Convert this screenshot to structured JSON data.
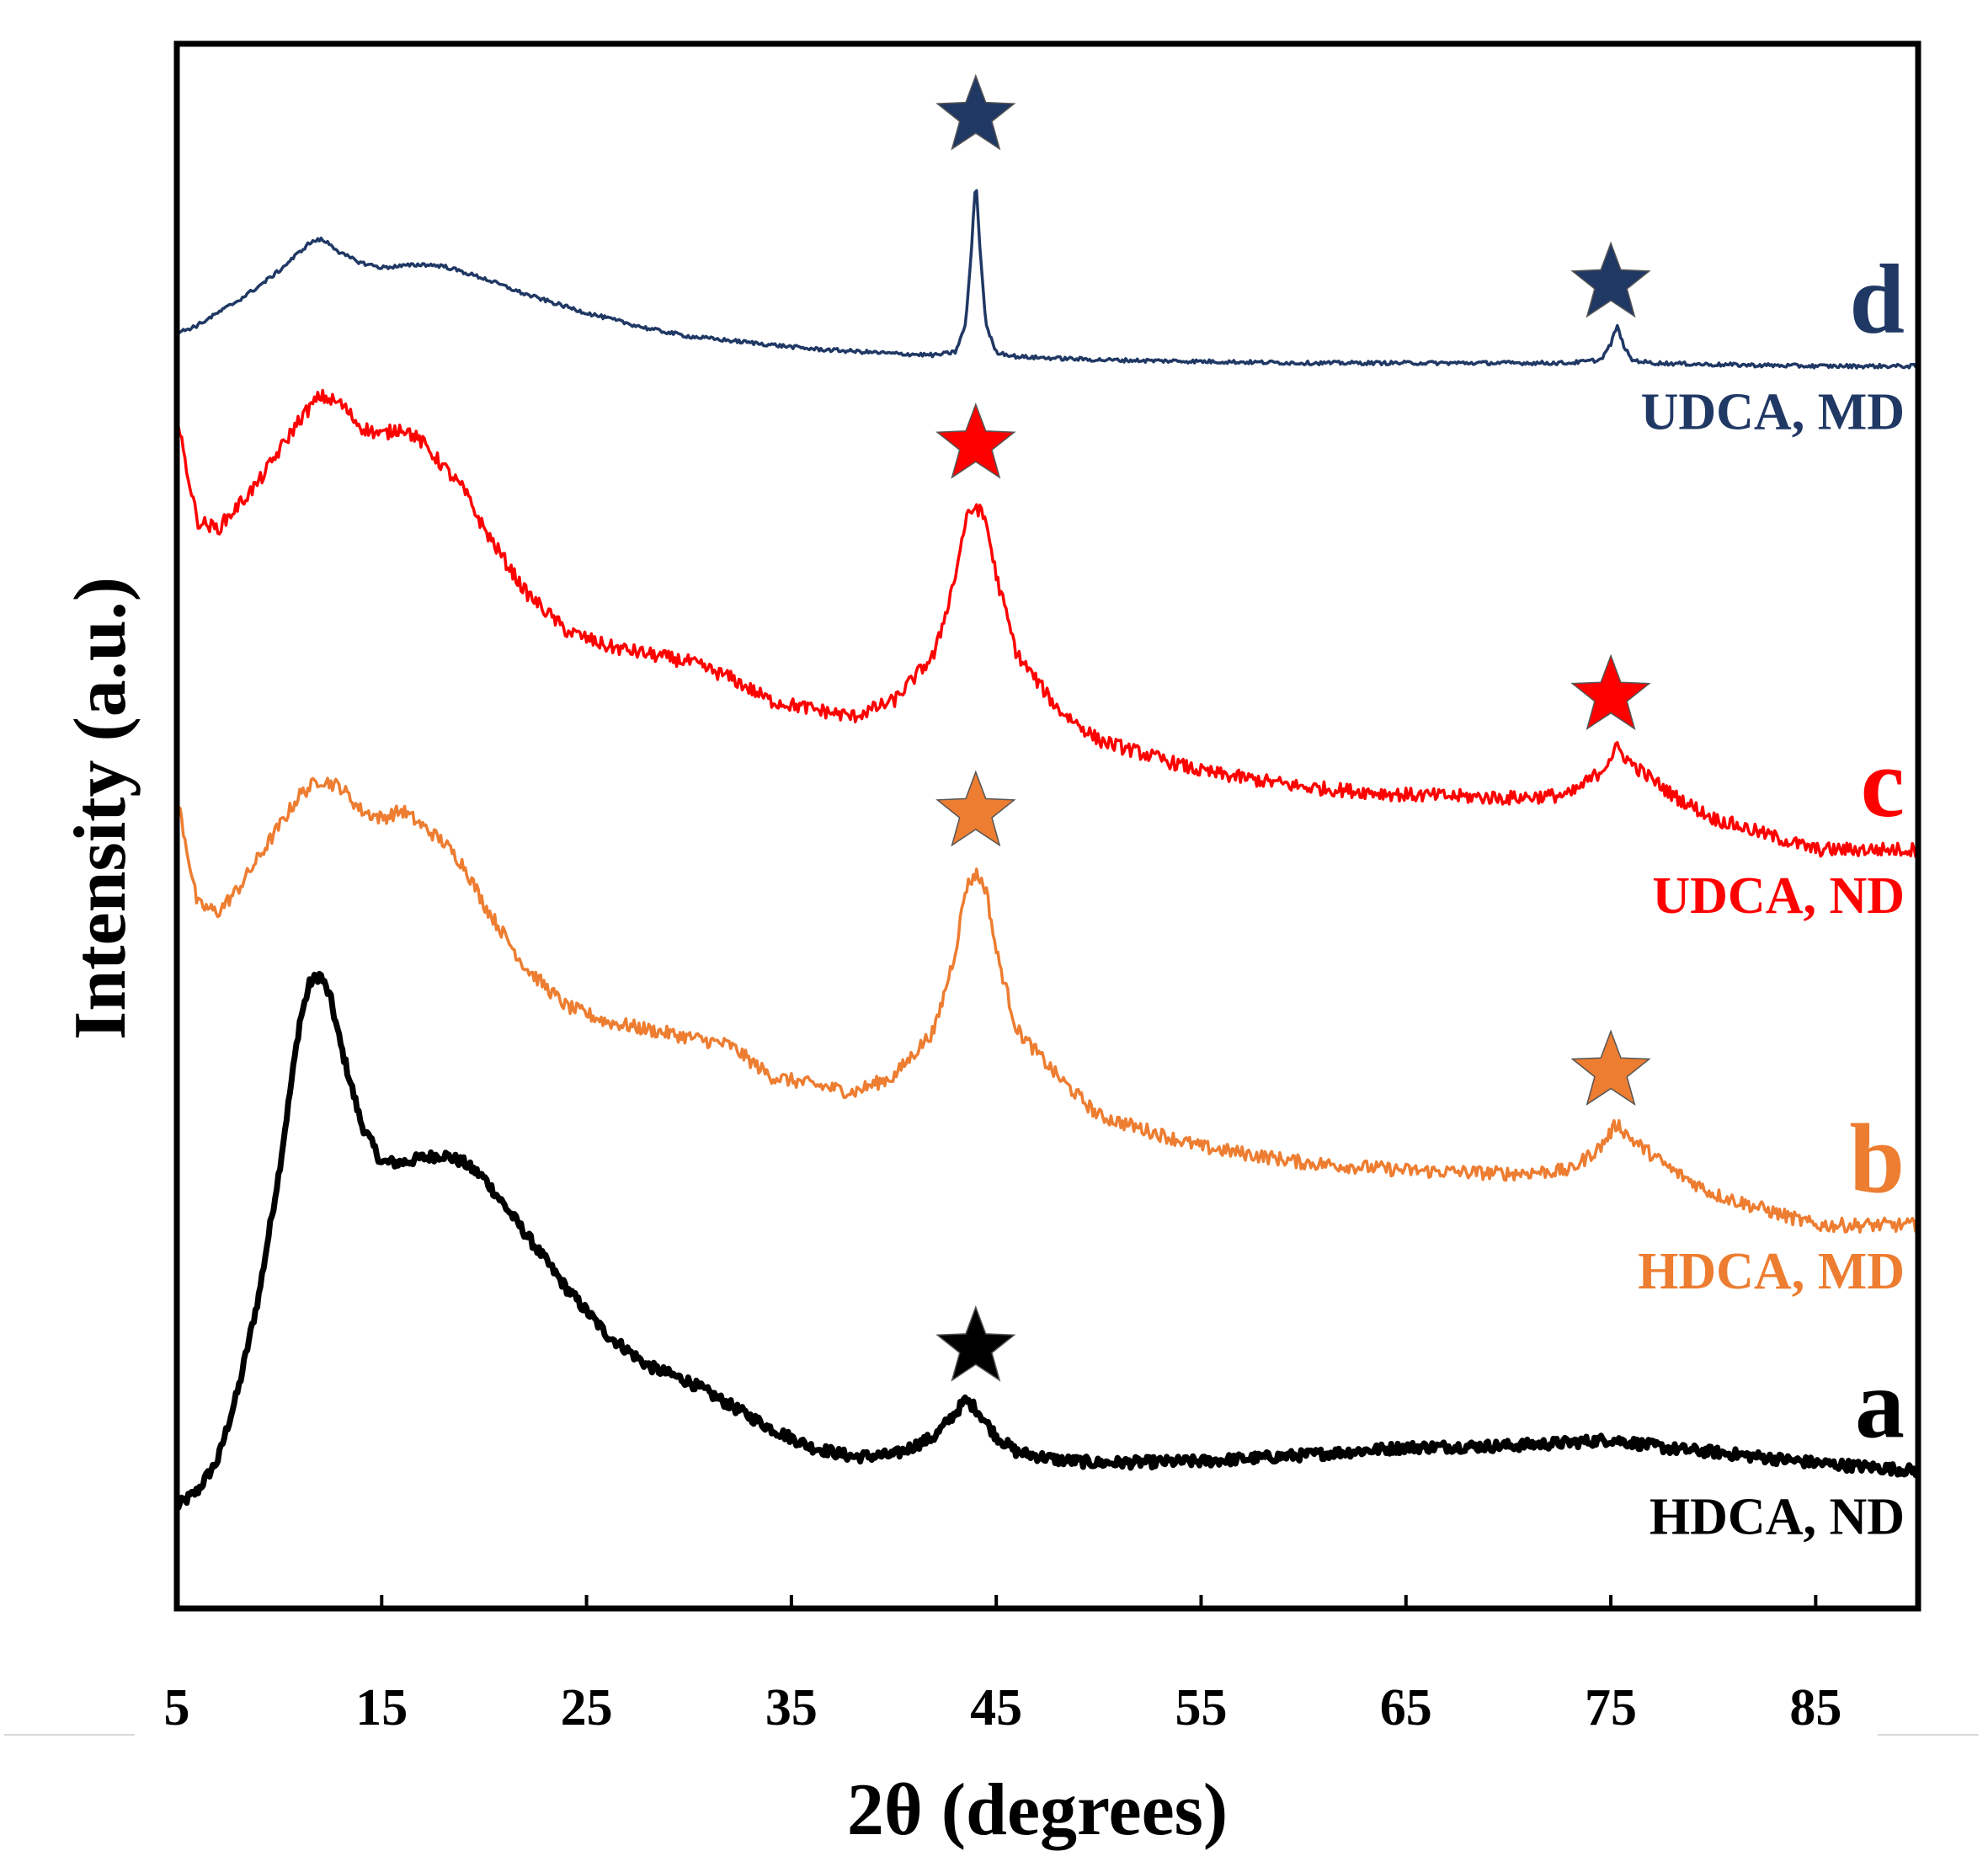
{
  "chart_data": {
    "type": "line",
    "xlabel": "2θ (degrees)",
    "ylabel": "Intensity (a.u.)",
    "xlim": [
      5,
      90
    ],
    "ylim": [
      0,
      100
    ],
    "xticks": [
      "5",
      "15",
      "25",
      "35",
      "45",
      "55",
      "65",
      "75",
      "85"
    ],
    "grid": false,
    "marker_symbol": "★",
    "series": [
      {
        "id": "a",
        "letter": "a",
        "name": "HDCA, ND",
        "color": "#000000",
        "x": [
          5,
          6,
          7,
          8,
          9,
          10,
          11,
          11.5,
          12,
          12.5,
          13,
          14,
          15,
          16,
          17,
          18,
          19,
          20,
          22,
          24,
          26,
          28,
          30,
          32,
          34,
          36,
          38,
          40,
          42,
          43,
          43.5,
          44,
          45,
          46,
          48,
          50,
          55,
          60,
          65,
          70,
          73,
          75,
          76,
          78,
          80,
          85,
          90
        ],
        "y": [
          6.5,
          7.5,
          9.5,
          14,
          20,
          28,
          37.5,
          40,
          40.5,
          39,
          36,
          31,
          28.5,
          28.5,
          28.8,
          29,
          28.5,
          27.5,
          24,
          20.5,
          17.5,
          15.5,
          14.5,
          13,
          11.5,
          10.3,
          9.7,
          9.8,
          11,
          12.5,
          13.3,
          12.8,
          11,
          10,
          9.5,
          9.3,
          9.4,
          9.8,
          10.3,
          10.4,
          10.6,
          10.8,
          10.6,
          10.2,
          10,
          9.3,
          8.8
        ],
        "peak_markers": [
          44
        ]
      },
      {
        "id": "b",
        "letter": "b",
        "name": "HDCA, MD",
        "color": "#ED7D31",
        "x": [
          5,
          6,
          7,
          8,
          9,
          10,
          11,
          12,
          13,
          14,
          15,
          16,
          17,
          18,
          19,
          20,
          22,
          24,
          26,
          28,
          30,
          32,
          34,
          36,
          38,
          40,
          42,
          43,
          43.5,
          44,
          44.5,
          45,
          46,
          48,
          50,
          55,
          60,
          65,
          70,
          73,
          74.5,
          75.3,
          76,
          77,
          78,
          80,
          85,
          90
        ],
        "y": [
          52,
          45,
          44.5,
          46,
          48,
          50,
          52,
          53,
          52.5,
          51,
          50.5,
          51,
          50,
          49,
          47.5,
          45,
          41,
          38.5,
          37.5,
          37,
          36.5,
          36,
          34,
          33.5,
          33,
          34,
          37,
          42,
          46,
          47,
          46,
          42,
          37,
          34,
          31.5,
          29.5,
          28.5,
          28,
          27.8,
          28,
          29.5,
          31,
          30,
          29,
          28,
          26.5,
          24.5,
          24.5
        ],
        "peak_markers": [
          44,
          75
        ]
      },
      {
        "id": "c",
        "letter": "c",
        "name": "UDCA, ND",
        "color": "#FF0000",
        "x": [
          5,
          6,
          7,
          8,
          9,
          10,
          11,
          12,
          13,
          14,
          15,
          16,
          17,
          18,
          19,
          20,
          22,
          24,
          26,
          28,
          30,
          32,
          34,
          36,
          38,
          40,
          42,
          43,
          43.5,
          44,
          44.5,
          45,
          46,
          48,
          50,
          55,
          60,
          65,
          70,
          73,
          74.5,
          75.3,
          76,
          77,
          78,
          80,
          85,
          90
        ],
        "y": [
          76,
          69.5,
          69,
          70.5,
          72,
          74,
          76,
          77.5,
          77,
          75.5,
          75,
          75.5,
          74.5,
          73,
          71.5,
          69,
          65,
          62.5,
          61.5,
          61,
          60.5,
          59.5,
          58,
          57.5,
          57,
          58,
          61,
          66,
          69.5,
          70.5,
          69.5,
          66,
          61,
          57.5,
          55.5,
          53.5,
          52.5,
          52,
          51.8,
          52,
          53.5,
          55,
          54,
          53,
          52,
          50.5,
          48.5,
          48.5
        ],
        "peak_markers": [
          44,
          75
        ]
      },
      {
        "id": "d",
        "letter": "d",
        "name": "UDCA, MD",
        "color": "#203864",
        "x": [
          5,
          6,
          7,
          8,
          9,
          10,
          11,
          11.5,
          12,
          12.5,
          13,
          14,
          15,
          16,
          17,
          18,
          19,
          20,
          22,
          25,
          28,
          30,
          33,
          36,
          40,
          42,
          43,
          43.5,
          43.8,
          44,
          44.2,
          44.5,
          45,
          46,
          48,
          50,
          55,
          60,
          65,
          70,
          73,
          74.5,
          75,
          75.3,
          75.6,
          76,
          77,
          80,
          85,
          90
        ],
        "y": [
          81.5,
          82,
          82.8,
          83.6,
          84.5,
          85.5,
          86.7,
          87.3,
          87.5,
          87.2,
          86.6,
          86,
          85.7,
          85.8,
          85.9,
          85.8,
          85.4,
          85,
          84,
          82.8,
          81.8,
          81.3,
          80.9,
          80.5,
          80.2,
          80.1,
          80.3,
          82,
          87,
          91.5,
          87,
          82,
          80.3,
          80,
          79.9,
          79.8,
          79.7,
          79.6,
          79.6,
          79.6,
          79.6,
          79.8,
          80.8,
          82,
          80.8,
          79.8,
          79.6,
          79.5,
          79.4,
          79.4
        ],
        "peak_markers": [
          44,
          75
        ]
      }
    ]
  }
}
